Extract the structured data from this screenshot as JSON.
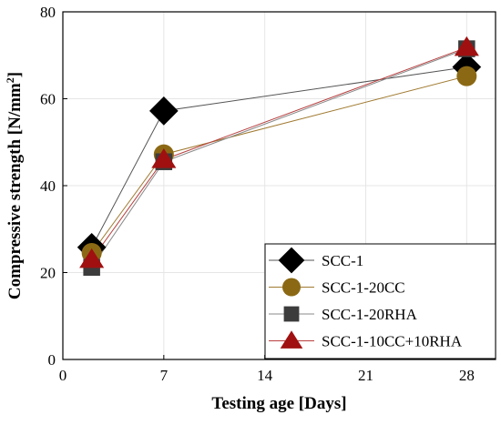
{
  "chart_data": {
    "type": "line",
    "xlabel": "Testing age [Days]",
    "ylabel_main": "Compressive strength [N/mm",
    "ylabel_sup": "2",
    "ylabel_end": "]",
    "xlim": [
      0,
      30
    ],
    "ylim": [
      0,
      80
    ],
    "xticks": [
      0,
      7,
      14,
      21,
      28
    ],
    "yticks": [
      0,
      20,
      40,
      60,
      80
    ],
    "grid": true,
    "legend_position": "bottom-right",
    "series": [
      {
        "name": "SCC-1",
        "marker": "diamond",
        "color": "#000000",
        "line_color": "#555555",
        "x": [
          2,
          7,
          28
        ],
        "y": [
          25.8,
          57.2,
          67.3
        ]
      },
      {
        "name": "SCC-1-20CC",
        "marker": "circle",
        "color": "#8B6914",
        "line_color": "#A07A30",
        "x": [
          2,
          7,
          28
        ],
        "y": [
          24.5,
          47.2,
          65.2
        ]
      },
      {
        "name": "SCC-1-20RHA",
        "marker": "square",
        "color": "#3C3C3C",
        "line_color": "#888888",
        "x": [
          2,
          7,
          28
        ],
        "y": [
          21.2,
          45.5,
          71.5
        ]
      },
      {
        "name": "SCC-1-10CC+10RHA",
        "marker": "triangle",
        "color": "#A01010",
        "line_color": "#B84040",
        "x": [
          2,
          7,
          28
        ],
        "y": [
          23.0,
          46.0,
          71.8
        ]
      }
    ]
  }
}
